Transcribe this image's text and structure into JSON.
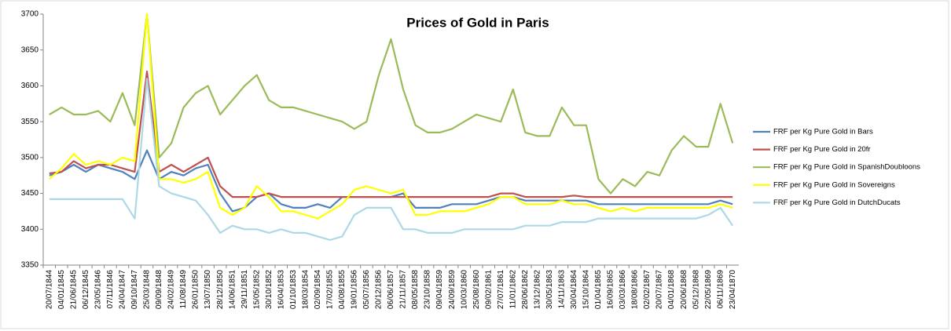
{
  "chart_data": {
    "type": "line",
    "title": "Prices of Gold in Paris",
    "categories": [
      "20/07/1844",
      "04/01/1845",
      "21/06/1845",
      "06/12/1845",
      "23/05/1846",
      "07/11/1846",
      "24/04/1847",
      "09/10/1847",
      "25/03/1848",
      "09/09/1848",
      "24/02/1849",
      "11/08/1849",
      "26/01/1850",
      "13/07/1850",
      "28/12/1850",
      "14/06/1851",
      "29/11/1851",
      "15/05/1852",
      "30/10/1852",
      "16/04/1853",
      "01/10/1853",
      "18/03/1854",
      "02/09/1854",
      "17/02/1855",
      "04/08/1855",
      "19/01/1856",
      "05/07/1856",
      "20/12/1856",
      "06/06/1857",
      "21/11/1857",
      "08/05/1858",
      "23/10/1858",
      "09/04/1859",
      "24/09/1859",
      "10/03/1860",
      "25/08/1860",
      "09/02/1861",
      "27/07/1861",
      "11/01/1862",
      "28/06/1862",
      "13/12/1862",
      "30/05/1863",
      "14/11/1863",
      "30/04/1864",
      "15/10/1864",
      "01/04/1865",
      "16/09/1865",
      "03/03/1866",
      "18/08/1866",
      "02/02/1867",
      "20/07/1867",
      "04/01/1868",
      "20/06/1868",
      "05/12/1868",
      "22/05/1869",
      "06/11/1869",
      "23/04/1870"
    ],
    "series": [
      {
        "name": "FRF per Kg Pure Gold  in Bars",
        "color": "#4f81bd",
        "values": [
          3475,
          3480,
          3490,
          3480,
          3490,
          3485,
          3480,
          3470,
          3510,
          3470,
          3480,
          3475,
          3485,
          3490,
          3450,
          3425,
          3430,
          3445,
          3450,
          3435,
          3430,
          3430,
          3435,
          3430,
          3445,
          3445,
          3445,
          3445,
          3445,
          3450,
          3430,
          3430,
          3430,
          3435,
          3435,
          3435,
          3440,
          3445,
          3445,
          3440,
          3440,
          3440,
          3440,
          3440,
          3440,
          3435,
          3435,
          3435,
          3435,
          3435,
          3435,
          3435,
          3435,
          3435,
          3435,
          3440,
          3435
        ]
      },
      {
        "name": "FRF per Kg Pure Gold  in 20fr",
        "color": "#c0504d",
        "values": [
          3478,
          3480,
          3495,
          3485,
          3490,
          3490,
          3485,
          3480,
          3620,
          3480,
          3490,
          3480,
          3490,
          3500,
          3460,
          3445,
          3445,
          3445,
          3450,
          3445,
          3445,
          3445,
          3445,
          3445,
          3445,
          3445,
          3445,
          3445,
          3445,
          3445,
          3445,
          3445,
          3445,
          3445,
          3445,
          3445,
          3445,
          3450,
          3450,
          3445,
          3445,
          3445,
          3445,
          3447,
          3445,
          3445,
          3445,
          3445,
          3445,
          3445,
          3445,
          3445,
          3445,
          3445,
          3445,
          3445,
          3445
        ]
      },
      {
        "name": "FRF per Kg Pure Gold  in SpanishDoubloons",
        "color": "#9bbb59",
        "values": [
          3560,
          3570,
          3560,
          3560,
          3565,
          3550,
          3590,
          3545,
          3700,
          3500,
          3520,
          3570,
          3590,
          3600,
          3560,
          3580,
          3600,
          3615,
          3580,
          3570,
          3570,
          3565,
          3560,
          3555,
          3550,
          3540,
          3550,
          3615,
          3665,
          3595,
          3545,
          3535,
          3535,
          3540,
          3550,
          3560,
          3555,
          3550,
          3595,
          3535,
          3530,
          3530,
          3570,
          3545,
          3545,
          3470,
          3450,
          3470,
          3460,
          3480,
          3475,
          3510,
          3530,
          3515,
          3515,
          3575,
          3520
        ]
      },
      {
        "name": "FRF per Kg Pure Gold  in Sovereigns",
        "color": "#ffff00",
        "values": [
          3470,
          3485,
          3505,
          3490,
          3495,
          3490,
          3500,
          3495,
          3700,
          3470,
          3470,
          3465,
          3470,
          3480,
          3430,
          3420,
          3430,
          3460,
          3445,
          3425,
          3425,
          3420,
          3415,
          3425,
          3435,
          3455,
          3460,
          3455,
          3450,
          3455,
          3420,
          3420,
          3425,
          3425,
          3425,
          3430,
          3435,
          3445,
          3445,
          3435,
          3435,
          3435,
          3440,
          3435,
          3435,
          3430,
          3425,
          3430,
          3425,
          3430,
          3430,
          3430,
          3430,
          3430,
          3430,
          3435,
          3430
        ]
      },
      {
        "name": "FRF per Kg Pure Gold  in DutchDucats",
        "color": "#add8e6",
        "values": [
          3442,
          3442,
          3442,
          3442,
          3442,
          3442,
          3442,
          3415,
          3610,
          3460,
          3450,
          3445,
          3440,
          3420,
          3395,
          3405,
          3400,
          3400,
          3395,
          3400,
          3395,
          3395,
          3390,
          3385,
          3390,
          3420,
          3430,
          3430,
          3430,
          3400,
          3400,
          3395,
          3395,
          3395,
          3400,
          3400,
          3400,
          3400,
          3400,
          3405,
          3405,
          3405,
          3410,
          3410,
          3410,
          3415,
          3415,
          3415,
          3415,
          3415,
          3415,
          3415,
          3415,
          3415,
          3420,
          3430,
          3405
        ]
      }
    ],
    "ylim": [
      3350,
      3700
    ],
    "yticks": [
      3350,
      3400,
      3450,
      3500,
      3550,
      3600,
      3650,
      3700
    ],
    "grid": false,
    "legend": "right"
  }
}
